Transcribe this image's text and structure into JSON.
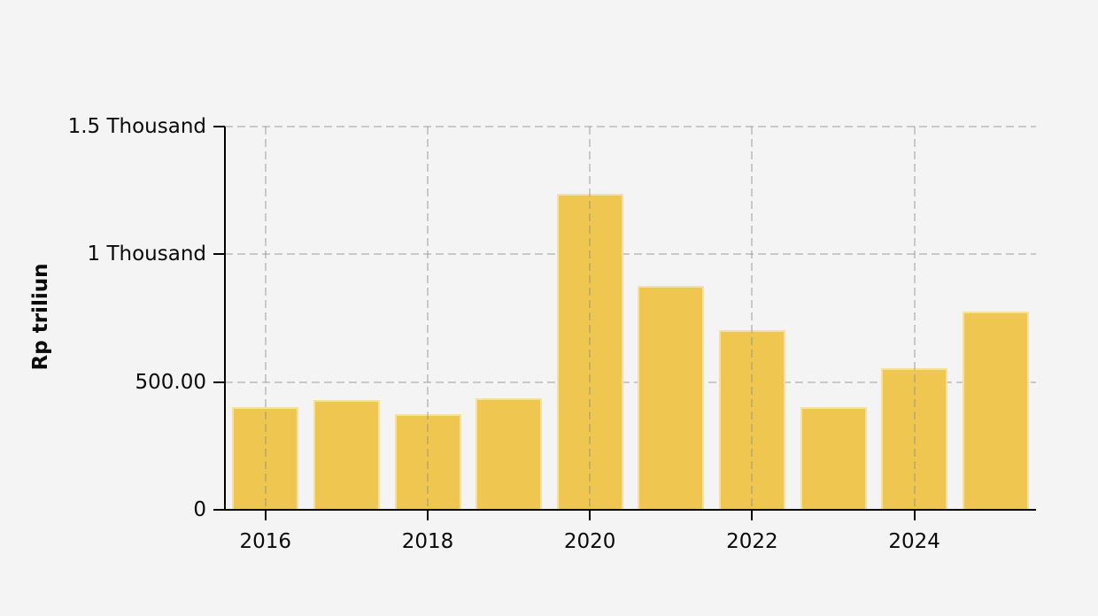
{
  "page": {
    "background_color": "#F4F4F4"
  },
  "chart_data": {
    "type": "bar",
    "title": "",
    "xlabel": "",
    "ylabel": "Rp triliun",
    "categories": [
      "2016",
      "2017",
      "2018",
      "2019",
      "2020",
      "2021",
      "2022",
      "2023",
      "2024",
      "2025"
    ],
    "values": [
      402,
      431,
      374,
      437,
      1236,
      875,
      702,
      402,
      555,
      776
    ],
    "ylim": [
      0,
      1500
    ],
    "y_ticks": [
      {
        "value": 0,
        "label": "0"
      },
      {
        "value": 500,
        "label": "500.00"
      },
      {
        "value": 1000,
        "label": "1 Thousand"
      },
      {
        "value": 1500,
        "label": "1.5 Thousand"
      }
    ],
    "x_tick_labels": [
      "2016",
      "2018",
      "2020",
      "2022",
      "2024"
    ],
    "grid": "dashed",
    "legend": "none",
    "bar_color": "#EFC64F",
    "bar_edge_color": "rgba(255,255,255,0.45)",
    "axis_color": "#000000",
    "gridline_color": "#C9C9C9",
    "label_color": "#0a0a0a",
    "background_color": "#F4F4F4"
  }
}
